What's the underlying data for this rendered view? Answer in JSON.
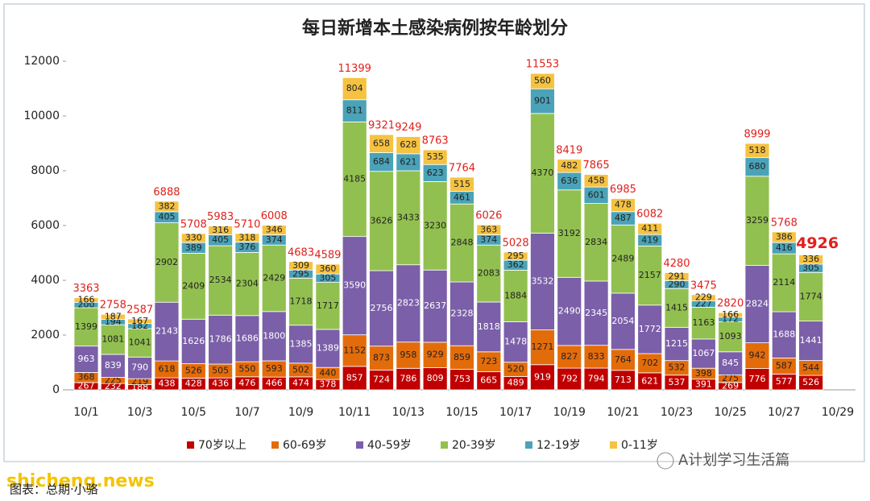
{
  "chart_data": {
    "type": "stacked_bar",
    "title": "每日新增本土感染病例按年龄划分",
    "categories": [
      "10/1",
      null,
      "10/3",
      null,
      "10/5",
      null,
      "10/7",
      null,
      "10/9",
      null,
      "10/11",
      null,
      "10/13",
      null,
      "10/15",
      null,
      "10/17",
      null,
      "10/19",
      null,
      "10/21",
      null,
      "10/23",
      null,
      "10/25",
      null,
      "10/27",
      null,
      "10/29"
    ],
    "series": [
      {
        "name": "70岁以上",
        "color": "#c00000",
        "values": [
          267,
          232,
          188,
          438,
          428,
          436,
          476,
          466,
          474,
          378,
          857,
          724,
          786,
          809,
          753,
          665,
          489,
          919,
          792,
          794,
          713,
          621,
          537,
          391,
          269,
          776,
          577,
          526,
          null
        ]
      },
      {
        "name": "60-69岁",
        "color": "#e36c0a",
        "values": [
          368,
          225,
          219,
          618,
          526,
          505,
          550,
          593,
          502,
          440,
          1152,
          873,
          958,
          929,
          859,
          723,
          520,
          1271,
          827,
          833,
          764,
          702,
          532,
          398,
          275,
          942,
          587,
          544,
          null
        ]
      },
      {
        "name": "40-59岁",
        "color": "#7b5fa8",
        "values": [
          963,
          839,
          790,
          2143,
          1626,
          1786,
          1686,
          1800,
          1385,
          1389,
          3590,
          2756,
          2823,
          2637,
          2328,
          1818,
          1478,
          3532,
          2490,
          2345,
          2054,
          1772,
          1215,
          1067,
          845,
          2824,
          1688,
          1441,
          null
        ]
      },
      {
        "name": "20-39岁",
        "color": "#92c050",
        "values": [
          1399,
          1081,
          1041,
          2902,
          2409,
          2534,
          2304,
          2429,
          1718,
          1717,
          4185,
          3626,
          3433,
          3230,
          2848,
          2083,
          1884,
          4370,
          3192,
          2834,
          2489,
          2157,
          1415,
          1163,
          1093,
          3259,
          2114,
          1774,
          null
        ]
      },
      {
        "name": "12-19岁",
        "color": "#4aa3b8",
        "values": [
          200,
          194,
          182,
          405,
          389,
          405,
          376,
          374,
          295,
          305,
          811,
          684,
          621,
          623,
          461,
          374,
          362,
          901,
          636,
          601,
          487,
          419,
          290,
          227,
          172,
          680,
          416,
          305,
          null
        ]
      },
      {
        "name": "0-11岁",
        "color": "#f5c242",
        "values": [
          166,
          187,
          167,
          382,
          330,
          316,
          318,
          346,
          309,
          360,
          804,
          658,
          628,
          535,
          515,
          363,
          295,
          560,
          482,
          458,
          478,
          411,
          291,
          229,
          166,
          518,
          386,
          336,
          null
        ]
      }
    ],
    "totals": [
      3363,
      2758,
      2587,
      6888,
      5708,
      5983,
      5710,
      6008,
      4683,
      4589,
      11399,
      9321,
      9249,
      8763,
      7764,
      6026,
      5028,
      11553,
      8419,
      7865,
      6985,
      6082,
      4280,
      3475,
      2820,
      8999,
      5768,
      4926,
      null
    ],
    "ylim": [
      0,
      12000
    ],
    "yticks": [
      0,
      2000,
      4000,
      6000,
      8000,
      10000,
      12000
    ],
    "grid": false,
    "legend": "bottom"
  },
  "watermark": "shicheng.news",
  "credit": "图表：总期·小骆",
  "account": "A计划学习生活篇"
}
